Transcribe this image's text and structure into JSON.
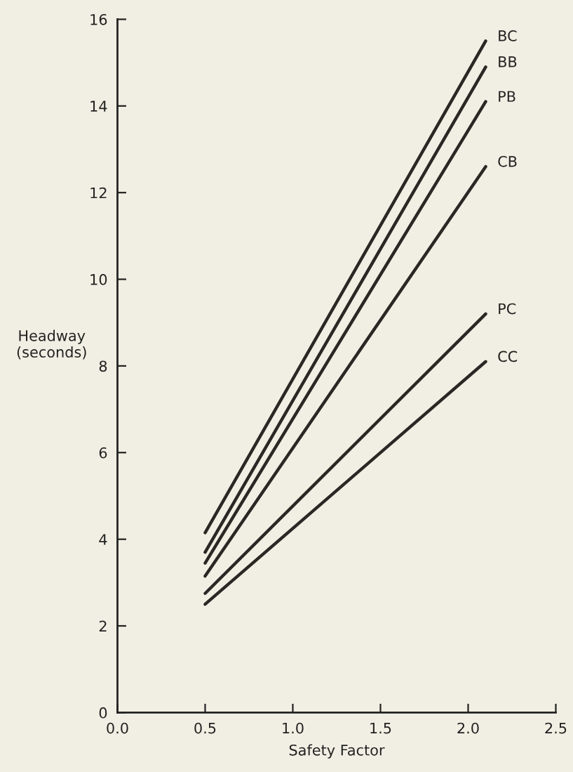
{
  "chart_data": {
    "type": "line",
    "xlabel": "Safety Factor",
    "ylabel": "Headway\n(seconds)",
    "xlim": [
      0,
      2.5
    ],
    "ylim": [
      0,
      16
    ],
    "xticks": [
      {
        "value": 0,
        "label": "0.0"
      },
      0.5,
      {
        "value": 1,
        "label": "1.0"
      },
      1.5,
      {
        "value": 2,
        "label": "2.0"
      },
      2.5
    ],
    "yticks": [
      0,
      2,
      4,
      6,
      8,
      10,
      12,
      14,
      16
    ],
    "x": [
      0.5,
      2.1
    ],
    "grid": false,
    "legend": false,
    "marker": "none",
    "line_style": "solid",
    "series": [
      {
        "name": "BC",
        "color": "#2b2725",
        "values": [
          4.15,
          15.5
        ]
      },
      {
        "name": "BB",
        "color": "#2b2725",
        "values": [
          3.7,
          14.9
        ]
      },
      {
        "name": "PB",
        "color": "#2b2725",
        "values": [
          3.45,
          14.1
        ]
      },
      {
        "name": "CB",
        "color": "#2b2725",
        "values": [
          3.15,
          12.6
        ]
      },
      {
        "name": "PC",
        "color": "#2b2725",
        "values": [
          2.75,
          9.2
        ]
      },
      {
        "name": "CC",
        "color": "#2b2725",
        "values": [
          2.5,
          8.1
        ]
      }
    ]
  }
}
